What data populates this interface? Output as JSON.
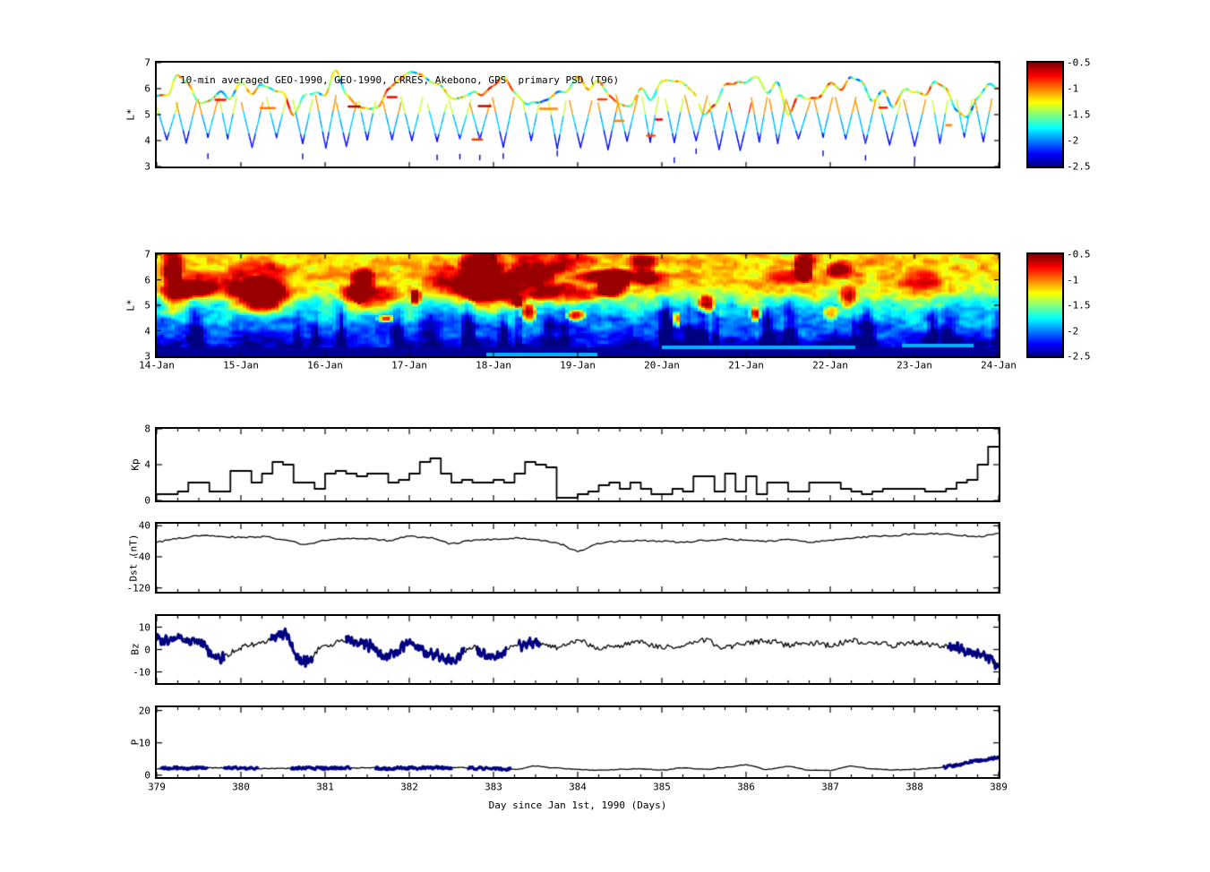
{
  "title_note": "10-min averaged GEO-1990, GEO-1990, CRRES, Akebono, GPS  primary PSD (T96)",
  "colorbar": {
    "tick_labels": [
      "-0.5",
      "-1",
      "-1.5",
      "-2",
      "-2.5"
    ],
    "clim": [
      -2.5,
      -0.5
    ]
  },
  "date_axis": {
    "tick_labels": [
      "14-Jan",
      "15-Jan",
      "16-Jan",
      "17-Jan",
      "18-Jan",
      "19-Jan",
      "20-Jan",
      "21-Jan",
      "22-Jan",
      "23-Jan",
      "24-Jan"
    ]
  },
  "day_axis": {
    "label": "Day since Jan 1st, 1990 (Days)",
    "tick_labels": [
      "379",
      "380",
      "381",
      "382",
      "383",
      "384",
      "385",
      "386",
      "387",
      "388",
      "389"
    ],
    "range": [
      379,
      389
    ]
  },
  "chart_data": [
    {
      "id": "psd_scatter",
      "type": "scatter",
      "title": "10-min averaged GEO-1990, GEO-1990, CRRES, Akebono, GPS  primary PSD (T96)",
      "ylabel": "L*",
      "ylim": [
        3,
        7
      ],
      "yticks": [
        7,
        6,
        5,
        4,
        3
      ],
      "ytick_labels": [
        "7",
        "6",
        "5",
        "4",
        "3"
      ],
      "clim": [
        -2.5,
        -0.5
      ],
      "x_range_days": [
        379,
        389
      ],
      "orbit_dips": 34,
      "dip_l_min": 3.6,
      "envelope_l": [
        5.4,
        6.8
      ]
    },
    {
      "id": "psd_map",
      "type": "heatmap",
      "ylabel": "L*",
      "ylim": [
        3,
        7
      ],
      "yticks": [
        7,
        6,
        5,
        4,
        3
      ],
      "ytick_labels": [
        "7",
        "6",
        "5",
        "4",
        "3"
      ],
      "clim": [
        -2.5,
        -0.5
      ],
      "x_tick_labels": [
        "14-Jan",
        "15-Jan",
        "16-Jan",
        "17-Jan",
        "18-Jan",
        "19-Jan",
        "20-Jan",
        "21-Jan",
        "22-Jan",
        "23-Jan",
        "24-Jan"
      ],
      "l_profile": {
        "L": [
          3,
          3.5,
          4,
          4.6,
          5.1,
          5.5,
          6.2,
          7
        ],
        "value": [
          -2.45,
          -2.33,
          -2.1,
          -1.85,
          -1.6,
          -1.25,
          -1.1,
          -1.2
        ]
      },
      "cyan_bottom_bands": [
        [
          3.9,
          5.25,
          3.0,
          3.16
        ],
        [
          6.0,
          8.3,
          3.28,
          3.44
        ],
        [
          8.85,
          9.7,
          3.36,
          3.52
        ]
      ]
    },
    {
      "id": "kp",
      "type": "line",
      "step": true,
      "ylabel": "Kp",
      "ylim": [
        0,
        8
      ],
      "yticks": [
        8,
        4,
        0
      ],
      "ytick_labels": [
        "8",
        "4",
        "0"
      ],
      "x_range": [
        379,
        389
      ],
      "values": [
        0.7,
        0.7,
        1.0,
        2.0,
        2.0,
        1.0,
        1.0,
        3.3,
        3.3,
        2.0,
        3.0,
        4.3,
        4.0,
        2.0,
        2.0,
        1.3,
        3.0,
        3.3,
        3.0,
        2.7,
        3.0,
        3.0,
        2.0,
        2.3,
        3.0,
        4.3,
        4.7,
        3.0,
        2.0,
        2.3,
        2.0,
        2.0,
        2.3,
        2.0,
        3.0,
        4.3,
        4.0,
        3.7,
        0.3,
        0.3,
        0.7,
        1.0,
        1.7,
        2.0,
        1.3,
        2.0,
        1.3,
        0.7,
        0.7,
        1.3,
        1.0,
        2.7,
        2.7,
        1.0,
        3.0,
        1.0,
        2.7,
        0.7,
        2.0,
        2.0,
        1.0,
        1.0,
        2.0,
        2.0,
        2.0,
        1.3,
        1.0,
        0.7,
        1.0,
        1.3,
        1.3,
        1.3,
        1.3,
        1.0,
        1.0,
        1.3,
        2.0,
        2.3,
        4.0,
        6.0
      ]
    },
    {
      "id": "dst",
      "type": "line",
      "ylabel": "Dst (nT)",
      "ylim": [
        -130,
        45
      ],
      "yticks": [
        40,
        -40,
        -120
      ],
      "ytick_labels": [
        "40",
        "-40",
        "-120"
      ],
      "x_range": [
        379,
        389
      ],
      "values": [
        -2,
        8,
        15,
        12,
        10,
        12,
        5,
        -8,
        2,
        8,
        6,
        2,
        12,
        8,
        -6,
        2,
        5,
        8,
        4,
        -5,
        -25,
        -5,
        0,
        2,
        0,
        -3,
        2,
        5,
        3,
        0,
        4,
        -2,
        2,
        8,
        12,
        15,
        18,
        20,
        16,
        12,
        20
      ]
    },
    {
      "id": "bz",
      "type": "line",
      "ylabel": "Bz",
      "ylim": [
        -15,
        15
      ],
      "yticks": [
        10,
        0,
        -10
      ],
      "ytick_labels": [
        "10",
        "0",
        "-10"
      ],
      "x_range": [
        379,
        389
      ],
      "values": [
        4,
        5,
        3,
        -4,
        1,
        3,
        7,
        -6,
        2,
        4,
        2,
        -3,
        3,
        -2,
        -5,
        1,
        -4,
        2,
        3,
        1,
        4,
        1,
        2,
        3,
        1,
        2,
        4,
        1,
        3,
        4,
        2,
        3,
        2,
        4,
        3,
        2,
        3,
        2,
        1,
        -2,
        -6
      ],
      "bold_ranges": [
        [
          379.0,
          379.8
        ],
        [
          380.35,
          380.85
        ],
        [
          381.25,
          382.65
        ],
        [
          382.8,
          383.15
        ],
        [
          383.3,
          383.55
        ],
        [
          388.4,
          389.0
        ]
      ],
      "bold_color": "#000082"
    },
    {
      "id": "p",
      "type": "line",
      "ylabel": "P",
      "ylim": [
        -0.6,
        21
      ],
      "yticks": [
        20,
        10,
        0
      ],
      "ytick_labels": [
        "20",
        "10",
        "0"
      ],
      "x_range": [
        379,
        389
      ],
      "values": [
        2.0,
        2.2,
        2.1,
        2.3,
        2.2,
        2.0,
        2.1,
        2.2,
        2.1,
        2.2,
        2.3,
        2.1,
        2.3,
        2.2,
        2.4,
        2.2,
        2.0,
        1.8,
        2.8,
        2.2,
        1.8,
        1.5,
        1.8,
        2.0,
        1.6,
        2.2,
        1.8,
        2.4,
        3.2,
        1.8,
        2.6,
        1.6,
        1.5,
        2.8,
        2.0,
        1.6,
        1.8,
        2.2,
        3.0,
        4.5,
        5.5
      ],
      "bold_ranges": [
        [
          379.05,
          379.6
        ],
        [
          379.8,
          380.2
        ],
        [
          380.6,
          381.3
        ],
        [
          381.6,
          382.5
        ],
        [
          382.7,
          383.2
        ],
        [
          388.35,
          389.0
        ]
      ],
      "bold_color": "#000082"
    }
  ]
}
